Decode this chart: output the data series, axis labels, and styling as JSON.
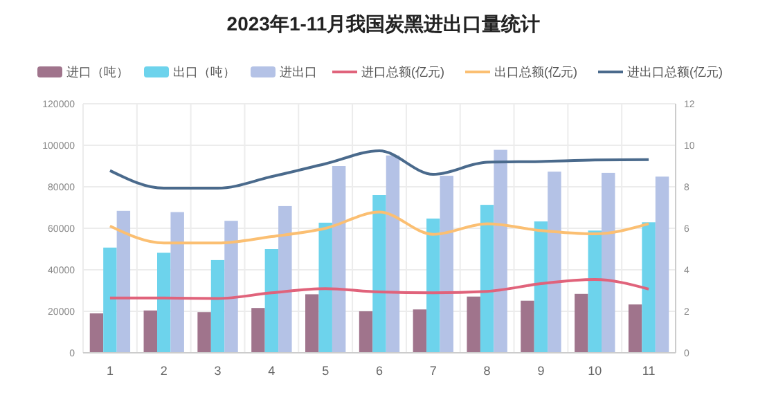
{
  "chart_data": {
    "type": "bar",
    "title": "2023年1-11月我国炭黑进出口量统计",
    "categories": [
      "1",
      "2",
      "3",
      "4",
      "5",
      "6",
      "7",
      "8",
      "9",
      "10",
      "11"
    ],
    "series": [
      {
        "name": "进口（吨）",
        "color": "#a0748c",
        "values": [
          19000,
          20400,
          19600,
          21600,
          28200,
          20000,
          20900,
          27100,
          25100,
          28400,
          23300
        ]
      },
      {
        "name": "出口（吨）",
        "color": "#6dd3ec",
        "values": [
          50700,
          48200,
          44700,
          50000,
          62700,
          76000,
          64700,
          71300,
          63300,
          58900,
          62900
        ]
      },
      {
        "name": "进出口",
        "color": "#b4c2e6",
        "values": [
          68400,
          67800,
          63600,
          70700,
          90000,
          95100,
          85300,
          97800,
          87300,
          86700,
          84900
        ]
      },
      {
        "name": "进口总额(亿元)",
        "type": "line",
        "axis": "y2",
        "color": "#e0637b",
        "values": [
          2.64,
          2.64,
          2.62,
          2.89,
          3.09,
          2.93,
          2.89,
          2.96,
          3.33,
          3.53,
          3.07
        ]
      },
      {
        "name": "出口总额(亿元)",
        "type": "line",
        "axis": "y2",
        "color": "#fbbf72",
        "values": [
          6.11,
          5.29,
          5.29,
          5.6,
          6.0,
          6.78,
          5.71,
          6.22,
          5.89,
          5.73,
          6.22
        ]
      },
      {
        "name": "进出口总额(亿元)",
        "type": "line",
        "axis": "y2",
        "color": "#4a6a8c",
        "values": [
          8.78,
          7.93,
          7.93,
          8.49,
          9.11,
          9.73,
          8.6,
          9.18,
          9.22,
          9.29,
          9.31
        ]
      }
    ],
    "ylim": [
      0,
      120000
    ],
    "yticks": [
      0,
      20000,
      40000,
      60000,
      80000,
      100000,
      120000
    ],
    "y2lim": [
      0,
      12
    ],
    "y2ticks": [
      0,
      2,
      4,
      6,
      8,
      10,
      12
    ],
    "grid": true,
    "legend": "top",
    "marker": "none",
    "line_style": "solid"
  }
}
